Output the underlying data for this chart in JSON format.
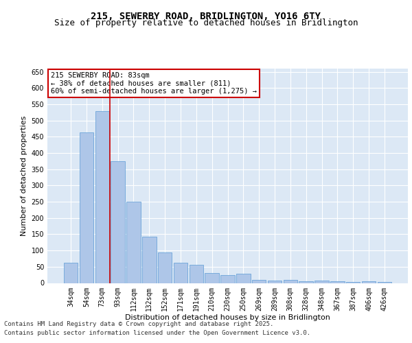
{
  "title_line1": "215, SEWERBY ROAD, BRIDLINGTON, YO16 6TY",
  "title_line2": "Size of property relative to detached houses in Bridlington",
  "xlabel": "Distribution of detached houses by size in Bridlington",
  "ylabel": "Number of detached properties",
  "categories": [
    "34sqm",
    "54sqm",
    "73sqm",
    "93sqm",
    "112sqm",
    "132sqm",
    "152sqm",
    "171sqm",
    "191sqm",
    "210sqm",
    "230sqm",
    "250sqm",
    "269sqm",
    "289sqm",
    "308sqm",
    "328sqm",
    "348sqm",
    "367sqm",
    "387sqm",
    "406sqm",
    "426sqm"
  ],
  "values": [
    63,
    463,
    530,
    375,
    250,
    143,
    95,
    63,
    57,
    30,
    25,
    29,
    10,
    8,
    10,
    6,
    7,
    5,
    4,
    5,
    4
  ],
  "bar_color": "#aec6e8",
  "bar_edge_color": "#5b9bd5",
  "background_color": "#dce8f5",
  "grid_color": "#ffffff",
  "vline_color": "#cc0000",
  "annotation_text": "215 SEWERBY ROAD: 83sqm\n← 38% of detached houses are smaller (811)\n60% of semi-detached houses are larger (1,275) →",
  "annotation_box_color": "#cc0000",
  "ylim": [
    0,
    660
  ],
  "yticks": [
    0,
    50,
    100,
    150,
    200,
    250,
    300,
    350,
    400,
    450,
    500,
    550,
    600,
    650
  ],
  "footer_line1": "Contains HM Land Registry data © Crown copyright and database right 2025.",
  "footer_line2": "Contains public sector information licensed under the Open Government Licence v3.0.",
  "title_fontsize": 10,
  "subtitle_fontsize": 9,
  "label_fontsize": 8,
  "tick_fontsize": 7,
  "footer_fontsize": 6.5,
  "ann_fontsize": 7.5
}
